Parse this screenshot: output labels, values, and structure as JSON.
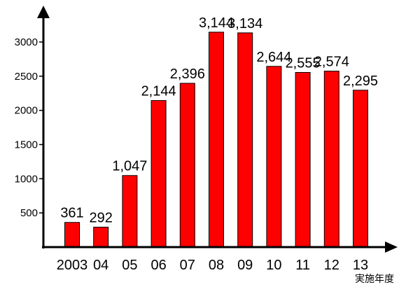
{
  "chart_data": {
    "type": "bar",
    "categories": [
      "2003",
      "04",
      "05",
      "06",
      "07",
      "08",
      "09",
      "10",
      "11",
      "12",
      "13"
    ],
    "values": [
      361,
      292,
      1047,
      2144,
      2396,
      3144,
      3134,
      2644,
      2555,
      2574,
      2295
    ],
    "data_labels": [
      "361",
      "292",
      "1,047",
      "2,144",
      "2,396",
      "3,144",
      "3,134",
      "2,644",
      "2,555",
      "2,574",
      "2,295"
    ],
    "xlabel": "実施年度",
    "ylabel": "",
    "ylim": [
      0,
      3000
    ],
    "yticks": [
      500,
      1000,
      1500,
      2000,
      2500,
      3000
    ],
    "grid": false,
    "legend": "none",
    "bar_color": "#ff0000",
    "bar_edge_color": "#000000"
  }
}
